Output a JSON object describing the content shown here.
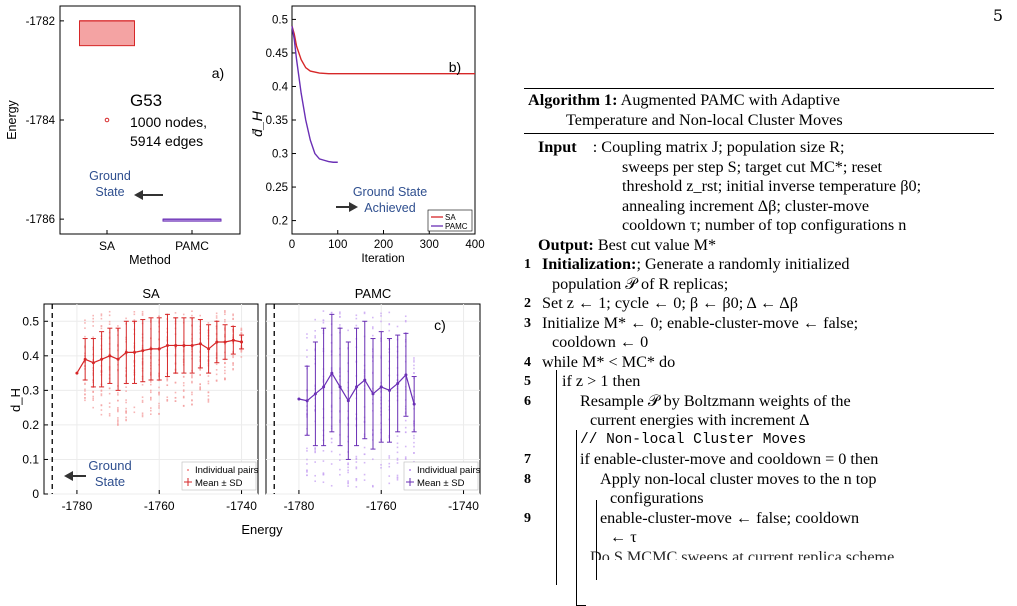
{
  "page_number": "5",
  "colors": {
    "sa": "#d62728",
    "pamc": "#6a2fb5",
    "sa_light": "#f4a3a3",
    "pamc_light": "#c9a6f2",
    "annotation": "#2f4f8f"
  },
  "chart_data": [
    {
      "panel": "a)",
      "type": "box",
      "xlabel": "Method",
      "ylabel": "Energy",
      "categories": [
        "SA",
        "PAMC"
      ],
      "ylim": [
        -1786.3,
        -1781.7
      ],
      "yticks": [
        -1782,
        -1784,
        -1786
      ],
      "boxes": [
        {
          "name": "SA",
          "q1": -1782.5,
          "median": -1782.0,
          "q3": -1782.0,
          "outliers": [
            -1784
          ]
        },
        {
          "name": "PAMC",
          "q1": -1786.0,
          "median": -1786.0,
          "q3": -1786.0,
          "outliers": []
        }
      ],
      "annotations": {
        "instance": "G53",
        "nodes": "1000 nodes,",
        "edges": "5914 edges",
        "ground_state_1": "Ground",
        "ground_state_2": "State"
      }
    },
    {
      "panel": "b)",
      "type": "line",
      "xlabel": "Iteration",
      "ylabel": "d̄_H",
      "xlim": [
        0,
        400
      ],
      "ylim": [
        0.18,
        0.52
      ],
      "xticks": [
        0,
        100,
        200,
        300,
        400
      ],
      "yticks": [
        0.2,
        0.25,
        0.3,
        0.35,
        0.4,
        0.45,
        0.5
      ],
      "series": [
        {
          "name": "SA",
          "x": [
            0,
            5,
            10,
            20,
            30,
            40,
            60,
            80,
            100,
            200,
            300,
            400
          ],
          "y": [
            0.49,
            0.478,
            0.46,
            0.44,
            0.428,
            0.423,
            0.42,
            0.419,
            0.419,
            0.419,
            0.419,
            0.419
          ]
        },
        {
          "name": "PAMC",
          "x": [
            0,
            5,
            10,
            20,
            30,
            40,
            50,
            60,
            70,
            80,
            90,
            100
          ],
          "y": [
            0.49,
            0.47,
            0.44,
            0.39,
            0.35,
            0.32,
            0.3,
            0.292,
            0.29,
            0.288,
            0.287,
            0.287
          ]
        }
      ],
      "annotations": {
        "achieved_1": "Ground State",
        "achieved_2": "Achieved"
      }
    },
    {
      "panel": "c)",
      "type": "scatter",
      "ylabel": "d_H",
      "xlabel": "Energy",
      "subplots": [
        {
          "title": "SA",
          "xlim": [
            -1788,
            -1736
          ],
          "ylim": [
            0,
            0.55
          ],
          "x": [
            -1780,
            -1778,
            -1776,
            -1774,
            -1772,
            -1770,
            -1768,
            -1766,
            -1764,
            -1762,
            -1760,
            -1758,
            -1756,
            -1754,
            -1752,
            -1750,
            -1748,
            -1746,
            -1744,
            -1742,
            -1740
          ],
          "mean": [
            0.35,
            0.39,
            0.38,
            0.39,
            0.4,
            0.39,
            0.41,
            0.41,
            0.415,
            0.42,
            0.42,
            0.43,
            0.43,
            0.43,
            0.43,
            0.435,
            0.42,
            0.44,
            0.44,
            0.445,
            0.44
          ],
          "sd": [
            0.0,
            0.06,
            0.07,
            0.08,
            0.08,
            0.09,
            0.09,
            0.09,
            0.09,
            0.09,
            0.09,
            0.09,
            0.08,
            0.08,
            0.08,
            0.07,
            0.07,
            0.06,
            0.05,
            0.04,
            0.02
          ]
        },
        {
          "title": "PAMC",
          "xlim": [
            -1788,
            -1736
          ],
          "ylim": [
            0,
            0.55
          ],
          "x": [
            -1780,
            -1778,
            -1776,
            -1774,
            -1772,
            -1770,
            -1768,
            -1766,
            -1764,
            -1762,
            -1760,
            -1758,
            -1756,
            -1754,
            -1752
          ],
          "mean": [
            0.275,
            0.27,
            0.29,
            0.31,
            0.35,
            0.31,
            0.27,
            0.31,
            0.33,
            0.29,
            0.31,
            0.3,
            0.32,
            0.345,
            0.26
          ],
          "sd": [
            0.0,
            0.1,
            0.15,
            0.17,
            0.17,
            0.17,
            0.17,
            0.17,
            0.17,
            0.16,
            0.16,
            0.15,
            0.14,
            0.12,
            0.08
          ]
        }
      ],
      "xticks": [
        -1780,
        -1760,
        -1740
      ],
      "yticks": [
        0,
        0.1,
        0.2,
        0.3,
        0.4,
        0.5
      ],
      "legend": [
        "Individual pairs",
        "Mean ± SD"
      ],
      "annotations": {
        "ground_1": "Ground",
        "ground_2": "State"
      }
    }
  ],
  "algorithm": {
    "title_bold": "Algorithm 1:",
    "title_rest": "Augmented PAMC with Adaptive",
    "title_line2": "Temperature and Non-local Cluster Moves",
    "input_label": "Input",
    "input_lines": [
      "Coupling matrix J; population size R;",
      "sweeps per step S; target cut MC*; reset",
      "threshold z_rst; initial inverse temperature β0;",
      "annealing increment Δβ; cluster-move",
      "cooldown τ; number of top configurations n"
    ],
    "output_label": "Output:",
    "output_text": "Best cut value M*",
    "steps": [
      {
        "n": "1",
        "bold": "Initialization:",
        "text": "; Generate a randomly initialized"
      },
      {
        "n": "",
        "text": "population 𝒫 of R replicas;"
      },
      {
        "n": "2",
        "text": "Set z ← 1;   cycle ← 0;   β ← β0;   Δ ← Δβ"
      },
      {
        "n": "3",
        "text": "Initialize M* ← 0;   enable-cluster-move ← false;"
      },
      {
        "n": "",
        "text": "cooldown ← 0"
      },
      {
        "n": "4",
        "text": "while M* < MC* do"
      },
      {
        "n": "5",
        "text": "if z > 1 then"
      },
      {
        "n": "6",
        "text": "Resample 𝒫 by Boltzmann weights of the"
      },
      {
        "n": "",
        "text": "current energies with increment Δ"
      },
      {
        "n": "",
        "text": "// Non-local Cluster Moves"
      },
      {
        "n": "7",
        "text": "if enable-cluster-move and cooldown = 0 then"
      },
      {
        "n": "8",
        "text": "Apply non-local cluster moves to the n top"
      },
      {
        "n": "",
        "text": "configurations"
      },
      {
        "n": "9",
        "text": "enable-cluster-move ← false;   cooldown"
      },
      {
        "n": "",
        "text": "← τ"
      },
      {
        "n": "",
        "text": "Do S MCMC sweeps at current replica scheme"
      }
    ]
  }
}
